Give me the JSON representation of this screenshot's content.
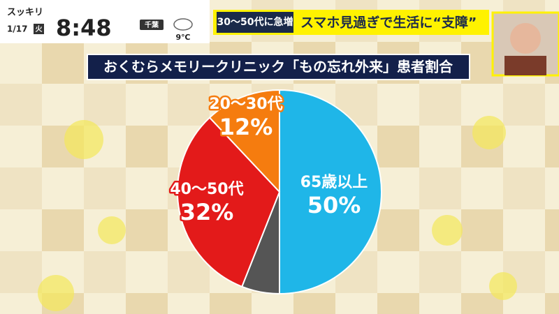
{
  "screen": {
    "program": "スッキリ",
    "date": "1/17",
    "weekday": "火",
    "time": "8:48",
    "region": "千葉",
    "temperature": "9℃",
    "tag": "30～50代に急増",
    "headline": "スマホ見過ぎで生活に“支障”"
  },
  "chart_data": {
    "type": "pie",
    "title": "おくむらメモリークリニック「もの忘れ外来」患者割合",
    "categories": [
      "65歳以上",
      null,
      "40～50代",
      "20～30代"
    ],
    "values": [
      50,
      6,
      32,
      12
    ],
    "value_labels": [
      "50%",
      null,
      "32%",
      "12%"
    ],
    "colors": [
      "#1fb6e8",
      "#555555",
      "#e31a1a",
      "#f57c0f"
    ],
    "start": "top",
    "direction": "clockwise"
  }
}
